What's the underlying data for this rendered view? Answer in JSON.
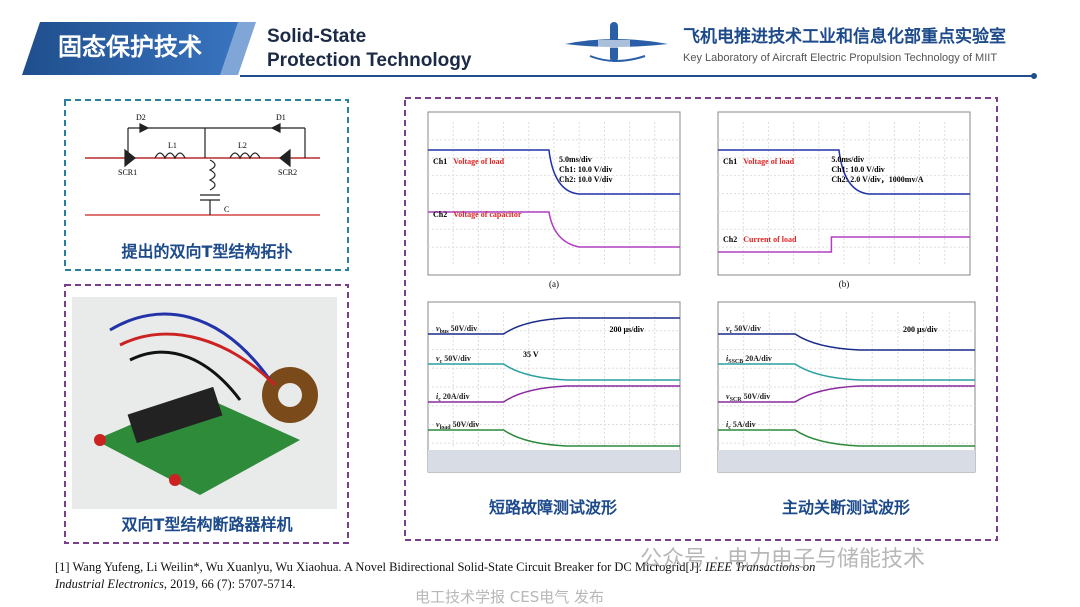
{
  "header": {
    "title_cn": "固态保护技术",
    "title_en_1": "Solid-State",
    "title_en_2": "Protection Technology",
    "lab_cn": "飞机电推进技术工业和信息化部重点实验室",
    "lab_en": "Key Laboratory of Aircraft Electric Propulsion Technology of MIIT"
  },
  "circuit": {
    "labels": [
      "D2",
      "D1",
      "SCR1",
      "SCR2",
      "L1",
      "L2",
      "C"
    ],
    "caption": "提出的双向T型结构拓扑"
  },
  "prototype": {
    "caption": "双向T型结构断路器样机"
  },
  "waveforms": {
    "panels": [
      {
        "ch1": "Ch1",
        "ch1_name": "Voltage of load",
        "ch2": "Ch2",
        "ch2_name": "Voltage of capacitor",
        "settings": [
          "5.0ms/div",
          "Ch1: 10.0  V/div",
          "Ch2: 10.0  V/div"
        ],
        "label": "(a)"
      },
      {
        "ch1": "Ch1",
        "ch1_name": "Voltage of load",
        "ch2": "Ch2",
        "ch2_name": "Current of load",
        "settings": [
          "5.0ms/div",
          "Ch1: 10.0  V/div",
          "Ch2: 2.0  V/div，1000mv/A"
        ],
        "label": "(b)"
      },
      {
        "timebase": "200 μs/div",
        "marker": "35 V",
        "traces": [
          {
            "v": "v",
            "sub": "bus",
            "rest": " 50V/div"
          },
          {
            "v": "v",
            "sub": "c",
            "rest": " 50V/div"
          },
          {
            "v": "i",
            "sub": "c",
            "rest": " 20A/div"
          },
          {
            "v": "v",
            "sub": "load",
            "rest": " 50V/div"
          }
        ]
      },
      {
        "timebase": "200 μs/div",
        "traces": [
          {
            "v": "v",
            "sub": "c",
            "rest": " 50V/div"
          },
          {
            "v": "i",
            "sub": "SSCB",
            "rest": " 20A/div"
          },
          {
            "v": "v",
            "sub": "SCR",
            "rest": " 50V/div"
          },
          {
            "v": "i",
            "sub": "c",
            "rest": " 5A/div"
          }
        ]
      }
    ],
    "captions": [
      "短路故障测试波形",
      "主动关断测试波形"
    ]
  },
  "reference": {
    "line1_plain": "[1] Wang Yufeng, Li Weilin*, Wu Xuanlyu, Wu Xiaohua. A Novel Bidirectional Solid-State Circuit Breaker for DC Microgrid[J]. ",
    "line1_italic": "IEEE Transactions on",
    "line2_italic": "Industrial Electronics",
    "line2_plain": ", 2019, 66 (7): 5707-5714."
  },
  "watermark": [
    "公众号 · 电力电子与储能技术",
    "电工技术学报 CES电气 发布"
  ]
}
